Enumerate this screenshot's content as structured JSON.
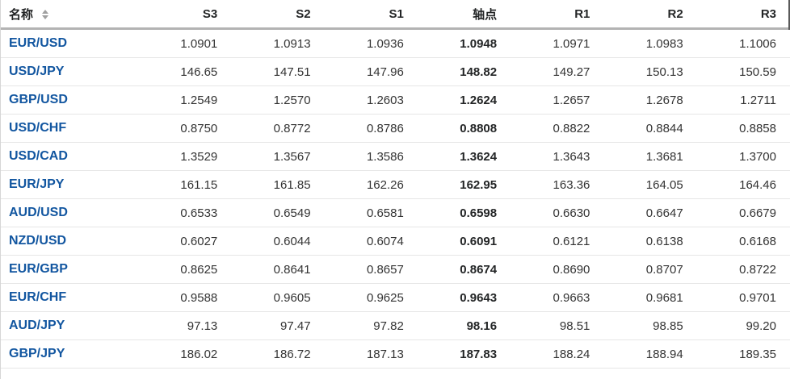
{
  "colors": {
    "link_blue": "#1256a0",
    "header_text": "#232526",
    "cell_text": "#333333",
    "row_divider": "#e6e6e6",
    "header_divider": "#b3b3b3"
  },
  "table": {
    "columns": [
      {
        "key": "name",
        "label": "名称",
        "sortable": true
      },
      {
        "key": "s3",
        "label": "S3"
      },
      {
        "key": "s2",
        "label": "S2"
      },
      {
        "key": "s1",
        "label": "S1"
      },
      {
        "key": "pivot",
        "label": "轴点"
      },
      {
        "key": "r1",
        "label": "R1"
      },
      {
        "key": "r2",
        "label": "R2"
      },
      {
        "key": "r3",
        "label": "R3"
      }
    ],
    "rows": [
      {
        "name": "EUR/USD",
        "values": [
          "1.0901",
          "1.0913",
          "1.0936",
          "1.0948",
          "1.0971",
          "1.0983",
          "1.1006"
        ]
      },
      {
        "name": "USD/JPY",
        "values": [
          "146.65",
          "147.51",
          "147.96",
          "148.82",
          "149.27",
          "150.13",
          "150.59"
        ]
      },
      {
        "name": "GBP/USD",
        "values": [
          "1.2549",
          "1.2570",
          "1.2603",
          "1.2624",
          "1.2657",
          "1.2678",
          "1.2711"
        ]
      },
      {
        "name": "USD/CHF",
        "values": [
          "0.8750",
          "0.8772",
          "0.8786",
          "0.8808",
          "0.8822",
          "0.8844",
          "0.8858"
        ]
      },
      {
        "name": "USD/CAD",
        "values": [
          "1.3529",
          "1.3567",
          "1.3586",
          "1.3624",
          "1.3643",
          "1.3681",
          "1.3700"
        ]
      },
      {
        "name": "EUR/JPY",
        "values": [
          "161.15",
          "161.85",
          "162.26",
          "162.95",
          "163.36",
          "164.05",
          "164.46"
        ]
      },
      {
        "name": "AUD/USD",
        "values": [
          "0.6533",
          "0.6549",
          "0.6581",
          "0.6598",
          "0.6630",
          "0.6647",
          "0.6679"
        ]
      },
      {
        "name": "NZD/USD",
        "values": [
          "0.6027",
          "0.6044",
          "0.6074",
          "0.6091",
          "0.6121",
          "0.6138",
          "0.6168"
        ]
      },
      {
        "name": "EUR/GBP",
        "values": [
          "0.8625",
          "0.8641",
          "0.8657",
          "0.8674",
          "0.8690",
          "0.8707",
          "0.8722"
        ]
      },
      {
        "name": "EUR/CHF",
        "values": [
          "0.9588",
          "0.9605",
          "0.9625",
          "0.9643",
          "0.9663",
          "0.9681",
          "0.9701"
        ]
      },
      {
        "name": "AUD/JPY",
        "values": [
          "97.13",
          "97.47",
          "97.82",
          "98.16",
          "98.51",
          "98.85",
          "99.20"
        ]
      },
      {
        "name": "GBP/JPY",
        "values": [
          "186.02",
          "186.72",
          "187.13",
          "187.83",
          "188.24",
          "188.94",
          "189.35"
        ]
      }
    ]
  }
}
